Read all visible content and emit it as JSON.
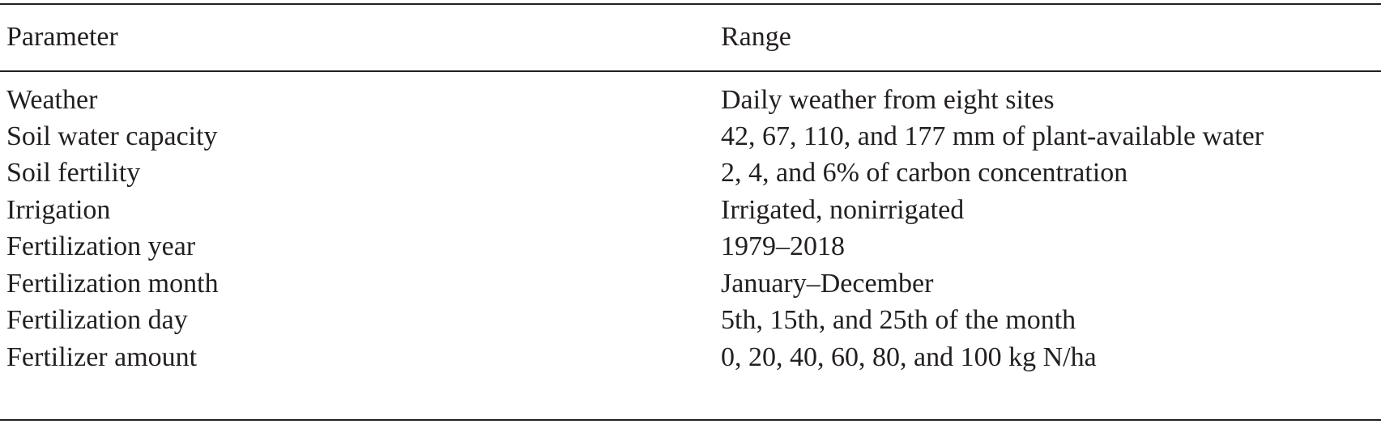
{
  "table": {
    "headers": {
      "parameter": "Parameter",
      "range": "Range"
    },
    "rows": [
      {
        "parameter": "Weather",
        "range": "Daily weather from eight sites"
      },
      {
        "parameter": "Soil water capacity",
        "range": "42, 67, 110, and 177 mm of plant-available water"
      },
      {
        "parameter": "Soil fertility",
        "range": "2, 4, and 6% of carbon concentration"
      },
      {
        "parameter": "Irrigation",
        "range": "Irrigated, nonirrigated"
      },
      {
        "parameter": "Fertilization year",
        "range": "1979–2018"
      },
      {
        "parameter": "Fertilization month",
        "range": "January–December"
      },
      {
        "parameter": "Fertilization day",
        "range": "5th, 15th, and 25th of the month"
      },
      {
        "parameter": "Fertilizer amount",
        "range": "0, 20, 40, 60, 80, and 100 kg N/ha"
      }
    ]
  }
}
